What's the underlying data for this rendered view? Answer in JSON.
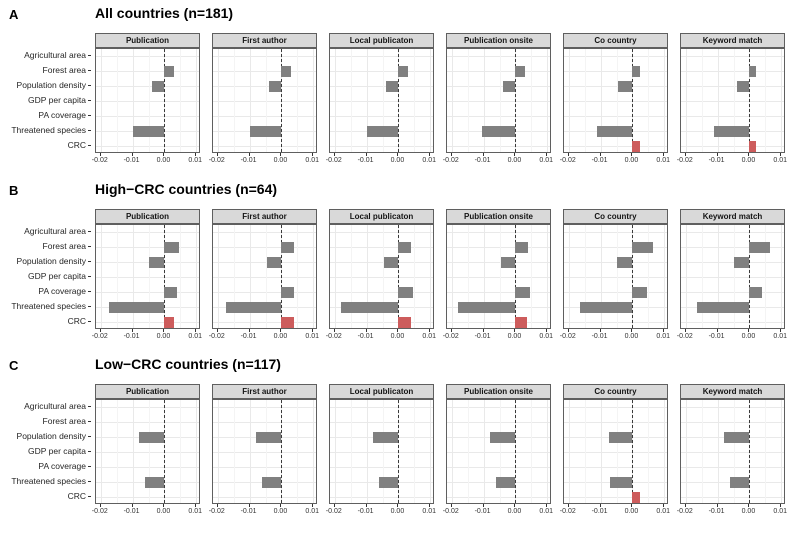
{
  "colors": {
    "bar_gray": "#808080",
    "bar_red": "#cd5c5c",
    "strip_bg": "#d9d9d9",
    "panel_border": "#5f5f5f",
    "grid_major": "#e9e9e9",
    "zero_line": "#3a3a3a",
    "background": "#ffffff"
  },
  "chart_data": {
    "type": "bar",
    "orientation": "horizontal",
    "grid": "on",
    "highlight_category": "CRC",
    "categories": [
      "Agricultural area",
      "Forest area",
      "Population density",
      "GDP per capita",
      "PA coverage",
      "Threatened species",
      "CRC"
    ],
    "x_domain": [
      -0.0215,
      0.0115
    ],
    "x_ticks": [
      -0.02,
      -0.01,
      0,
      0.01
    ],
    "x_tick_labels": [
      "-0.02",
      "-0.01",
      "0.00",
      "0.01"
    ],
    "panels": [
      {
        "panel_label": "A",
        "title": "All countries (n=181)",
        "facets": [
          {
            "label": "Publication",
            "values": [
              0,
              0.003,
              -0.004,
              0,
              0,
              -0.01,
              0
            ]
          },
          {
            "label": "First author",
            "values": [
              0,
              0.003,
              -0.004,
              0,
              0,
              -0.01,
              0
            ]
          },
          {
            "label": "Local publicaton",
            "values": [
              0,
              0.003,
              -0.004,
              0,
              0,
              -0.01,
              0
            ]
          },
          {
            "label": "Publication onsite",
            "values": [
              0,
              0.003,
              -0.004,
              0,
              0,
              -0.0105,
              0
            ]
          },
          {
            "label": "Co country",
            "values": [
              0,
              0.0025,
              -0.0045,
              0,
              0,
              -0.011,
              0.0025
            ]
          },
          {
            "label": "Keyword match",
            "values": [
              0,
              0.002,
              -0.004,
              0,
              0,
              -0.011,
              0.002
            ]
          }
        ]
      },
      {
        "panel_label": "B",
        "title": "High−CRC countries (n=64)",
        "facets": [
          {
            "label": "Publication",
            "values": [
              0,
              0.0045,
              -0.005,
              0,
              0.004,
              -0.0175,
              0.003
            ]
          },
          {
            "label": "First author",
            "values": [
              0,
              0.004,
              -0.0045,
              0,
              0.004,
              -0.0175,
              0.004
            ]
          },
          {
            "label": "Local publicaton",
            "values": [
              0,
              0.004,
              -0.0045,
              0,
              0.0045,
              -0.018,
              0.004
            ]
          },
          {
            "label": "Publication onsite",
            "values": [
              0,
              0.004,
              -0.0045,
              0,
              0.0045,
              -0.018,
              0.0035
            ]
          },
          {
            "label": "Co country",
            "values": [
              0,
              0.0065,
              -0.005,
              0,
              0.0045,
              -0.0165,
              0
            ]
          },
          {
            "label": "Keyword match",
            "values": [
              0,
              0.0065,
              -0.005,
              0,
              0.004,
              -0.0165,
              0
            ]
          }
        ]
      },
      {
        "panel_label": "C",
        "title": "Low−CRC countries (n=117)",
        "facets": [
          {
            "label": "Publication",
            "values": [
              0,
              0,
              -0.008,
              0,
              0,
              -0.006,
              0
            ]
          },
          {
            "label": "First author",
            "values": [
              0,
              0,
              -0.008,
              0,
              0,
              -0.006,
              0
            ]
          },
          {
            "label": "Local publicaton",
            "values": [
              0,
              0,
              -0.008,
              0,
              0,
              -0.006,
              0
            ]
          },
          {
            "label": "Publication onsite",
            "values": [
              0,
              0,
              -0.008,
              0,
              0,
              -0.006,
              0
            ]
          },
          {
            "label": "Co country",
            "values": [
              0,
              0,
              -0.0075,
              0,
              0,
              -0.007,
              0.0025
            ]
          },
          {
            "label": "Keyword match",
            "values": [
              0,
              0,
              -0.008,
              0,
              0,
              -0.006,
              0
            ]
          }
        ]
      }
    ]
  }
}
